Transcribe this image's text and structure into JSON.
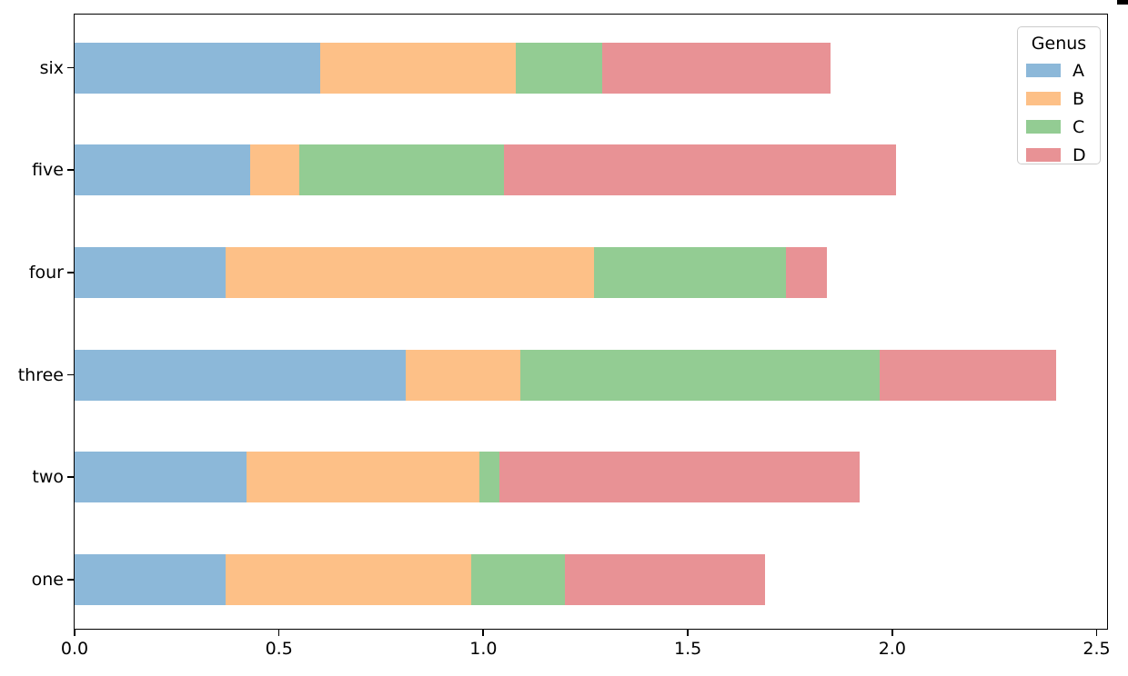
{
  "chart_data": {
    "type": "bar",
    "orientation": "horizontal",
    "stacked": true,
    "title": "",
    "xlabel": "",
    "ylabel": "",
    "categories": [
      "one",
      "two",
      "three",
      "four",
      "five",
      "six"
    ],
    "display_order_top_to_bottom": [
      "six",
      "five",
      "four",
      "three",
      "two",
      "one"
    ],
    "series": [
      {
        "name": "A",
        "color": "#8CB8D9",
        "values": [
          0.37,
          0.42,
          0.81,
          0.37,
          0.43,
          0.6
        ]
      },
      {
        "name": "B",
        "color": "#FDC087",
        "values": [
          0.6,
          0.57,
          0.28,
          0.9,
          0.12,
          0.48
        ]
      },
      {
        "name": "C",
        "color": "#93CC93",
        "values": [
          0.23,
          0.05,
          0.88,
          0.47,
          0.5,
          0.21
        ]
      },
      {
        "name": "D",
        "color": "#E89295",
        "values": [
          0.49,
          0.88,
          0.43,
          0.1,
          0.96,
          0.56
        ]
      }
    ],
    "stack_totals": [
      1.69,
      1.92,
      2.4,
      1.84,
      2.01,
      1.85
    ],
    "legend": {
      "title": "Genus",
      "entries": [
        "A",
        "B",
        "C",
        "D"
      ],
      "position": "upper-right"
    },
    "x_ticks": [
      0.0,
      0.5,
      1.0,
      1.5,
      2.0,
      2.5
    ],
    "x_tick_labels": [
      "0.0",
      "0.5",
      "1.0",
      "1.5",
      "2.0",
      "2.5"
    ],
    "xlim": [
      0,
      2.52
    ],
    "grid": false,
    "axis_color": "#000000",
    "background_color": "#FFFFFF"
  }
}
